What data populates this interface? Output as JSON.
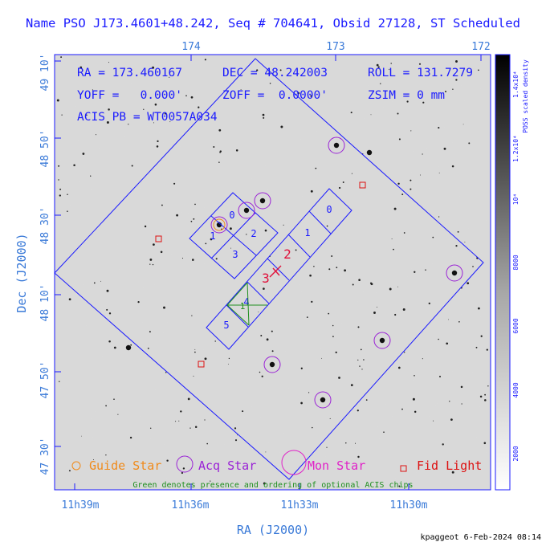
{
  "title": "Name PSO J173.4601+48.242, Seq # 704641, Obsid 27128, ST Scheduled",
  "axes": {
    "top_ticks": [
      "174",
      "173",
      "172"
    ],
    "left_ticks": [
      "49 10'",
      "48 50'",
      "48 30'",
      "48 10'",
      "47 50'",
      "47 30'"
    ],
    "bottom_ticks": [
      "11h39m",
      "11h36m",
      "11h33m",
      "11h30m"
    ],
    "xlabel": "RA (J2000)",
    "ylabel": "Dec (J2000)"
  },
  "info": {
    "ra": "RA = 173.460167",
    "dec": "DEC = 48.242003",
    "roll": "ROLL = 131.7279",
    "yoff": "YOFF =   0.000'",
    "zoff": "ZOFF =  0.0000'",
    "zsim": "ZSIM = 0 mm",
    "acis_pb": "ACIS PB = WT0057A034"
  },
  "chips": {
    "aciss": [
      "0",
      "1",
      "2",
      "3",
      "4",
      "5"
    ],
    "acisi": [
      "0",
      "1",
      "2",
      "3"
    ],
    "green": [
      "4",
      "1"
    ]
  },
  "legend": {
    "guide": "Guide Star",
    "acq": "Acq Star",
    "mon": "Mon Star",
    "fid": "Fid Light",
    "note": "Green denotes presence and ordering of optional ACIS chips"
  },
  "colorbar": {
    "label": "POSS scaled density",
    "ticks": [
      "1.4x10⁴",
      "1.2x10⁴",
      "10⁴",
      "8000",
      "6000",
      "4000",
      "2000"
    ]
  },
  "footer": "kpaggeot  6-Feb-2024 08:14",
  "colors": {
    "blue": "#1a1aff",
    "label_blue": "#3a7ad8",
    "acq": "#9a22d6",
    "mon": "#e022c8",
    "guide": "#f08a1a",
    "fid": "#dd1111",
    "green": "#1f8f1f",
    "red": "#e0103a"
  }
}
